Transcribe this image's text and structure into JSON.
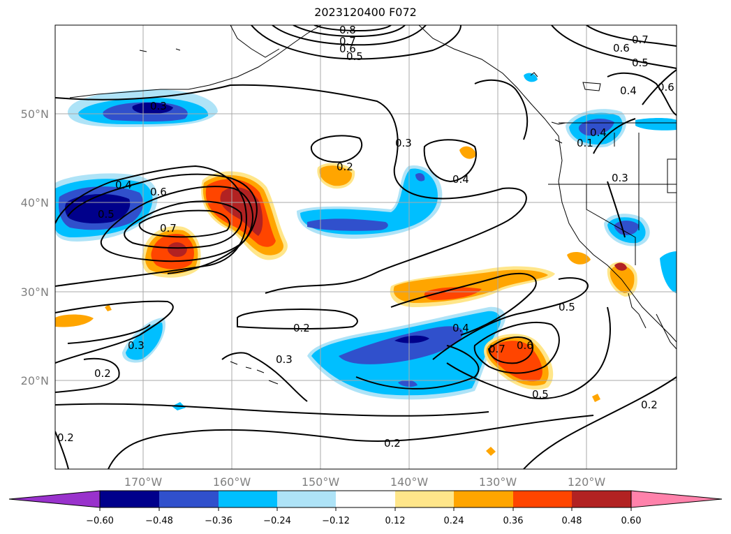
{
  "title": "2023120400 F072",
  "map": {
    "lat_labels": [
      "50°N",
      "40°N",
      "30°N",
      "20°N"
    ],
    "lon_labels": [
      "170°W",
      "160°W",
      "150°W",
      "140°W",
      "130°W",
      "120°W"
    ],
    "contour_labels": [
      "0.8",
      "0.7",
      "0.6",
      "0.5",
      "0.7",
      "0.6",
      "0.5",
      "0.4",
      "0.6",
      "0.3",
      "0.3",
      "0.2",
      "0.4",
      "0.4",
      "0.5",
      "0.6",
      "0.7",
      "0.1",
      "0.4",
      "0.3",
      "0.5",
      "0.4",
      "0.7",
      "0.6",
      "0.5",
      "0.2",
      "0.3",
      "0.3",
      "0.2",
      "0.2",
      "0.2",
      "0.2"
    ]
  },
  "colorbar": {
    "ticks": [
      "−0.60",
      "−0.48",
      "−0.36",
      "−0.24",
      "−0.12",
      "0.12",
      "0.24",
      "0.36",
      "0.48",
      "0.60"
    ],
    "colors": {
      "extend_low": "#9932cc",
      "lt_-0.48": "#00008b",
      "lt_-0.36": "#3050cc",
      "lt_-0.24": "#00bfff",
      "lt_-0.12": "#aee3f7",
      "neutral": "#ffffff",
      "lt_0.24": "#ffe68a",
      "lt_0.36": "#ffa500",
      "lt_0.48": "#ff4500",
      "lt_0.60": "#b22222",
      "extend_high": "#ff82ab"
    }
  }
}
